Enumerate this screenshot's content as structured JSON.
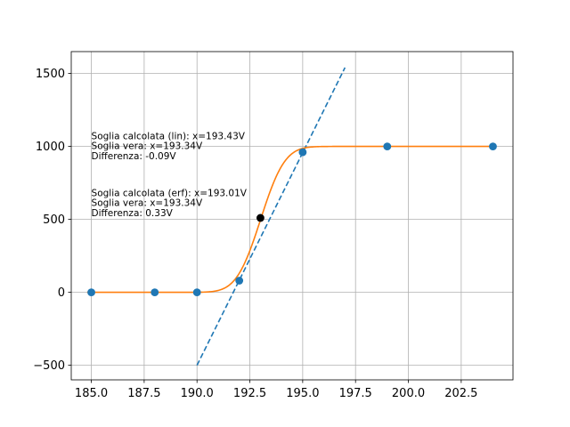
{
  "chart_data": {
    "type": "scatter",
    "xlim": [
      184.05,
      204.95
    ],
    "ylim": [
      -600,
      1650
    ],
    "grid": true,
    "x_ticks": [
      185.0,
      187.5,
      190.0,
      192.5,
      195.0,
      197.5,
      200.0,
      202.5
    ],
    "x_tick_labels": [
      "185.0",
      "187.5",
      "190.0",
      "192.5",
      "195.0",
      "197.5",
      "200.0",
      "202.5"
    ],
    "y_ticks": [
      -500,
      0,
      500,
      1000,
      1500
    ],
    "y_tick_labels": [
      "−500",
      "0",
      "500",
      "1000",
      "1500"
    ],
    "series": [
      {
        "kind": "scatter",
        "color": "#1f77b4",
        "x": [
          185,
          188,
          190,
          192,
          195,
          199,
          204
        ],
        "y": [
          0,
          0,
          0,
          80,
          960,
          1000,
          1000
        ]
      },
      {
        "kind": "scatter",
        "color": "#000000",
        "x": [
          193
        ],
        "y": [
          510
        ]
      },
      {
        "kind": "line",
        "style": "dashed",
        "color": "#1f77b4",
        "x": [
          190,
          197
        ],
        "y": [
          -500,
          1540
        ]
      },
      {
        "kind": "line",
        "style": "solid",
        "color": "#ff7f0e",
        "model": "erf",
        "amplitude": 1000,
        "center": 193.01,
        "sigma": 0.9,
        "x_range": [
          184.8,
          204
        ]
      }
    ],
    "annotations": [
      {
        "x": 185,
        "y": 1050,
        "lines": [
          "Soglia calcolata (lin): x=193.43V",
          "Soglia vera: x=193.34V",
          "Differenza: -0.09V"
        ]
      },
      {
        "x": 185,
        "y": 660,
        "lines": [
          "Soglia calcolata (erf): x=193.01V",
          "Soglia vera: x=193.34V",
          "Differenza: 0.33V"
        ]
      }
    ]
  }
}
